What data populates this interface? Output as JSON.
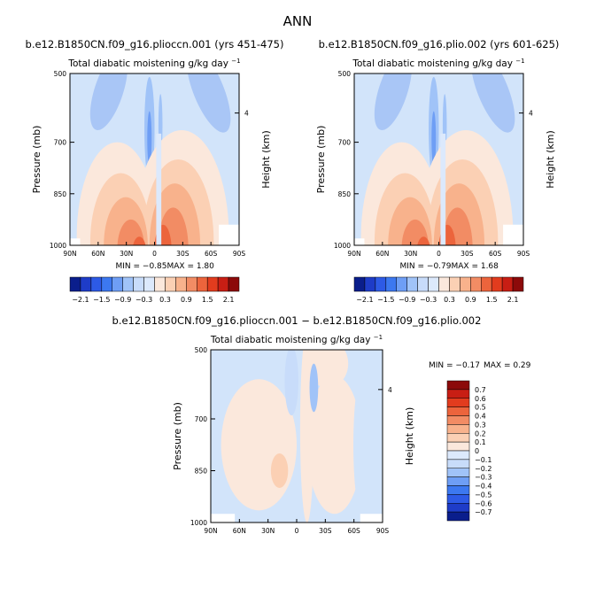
{
  "title": "ANN",
  "chart_data": [
    {
      "type": "heatmap",
      "title": "b.e12.B1850CN.f09_g16.plioccn.001 (yrs 451-475)",
      "subtitle": "Total diabatic moistening",
      "units": "g/kg day",
      "units_exponent": "−1",
      "ylabel": "Pressure (mb)",
      "right_ylabel": "Height (km)",
      "right_ticks": [
        "4"
      ],
      "x_ticks": [
        "90N",
        "60N",
        "30N",
        "0",
        "30S",
        "60S",
        "90S"
      ],
      "y_ticks": [
        "500",
        "700",
        "850",
        "1000"
      ],
      "min_label": "MIN =",
      "min_value": "−0.85",
      "max_label": "MAX =",
      "max_value": "1.80",
      "colorbar_labels": [
        "−2.1",
        "−1.5",
        "−0.9",
        "−0.3",
        "0.3",
        "0.9",
        "1.5",
        "2.1"
      ]
    },
    {
      "type": "heatmap",
      "title": "b.e12.B1850CN.f09_g16.plio.002 (yrs 601-625)",
      "subtitle": "Total diabatic moistening",
      "units": "g/kg day",
      "units_exponent": "−1",
      "ylabel": "Pressure (mb)",
      "right_ylabel": "Height (km)",
      "right_ticks": [
        "4"
      ],
      "x_ticks": [
        "90N",
        "60N",
        "30N",
        "0",
        "30S",
        "60S",
        "90S"
      ],
      "y_ticks": [
        "500",
        "700",
        "850",
        "1000"
      ],
      "min_label": "MIN =",
      "min_value": "−0.79",
      "max_label": "MAX =",
      "max_value": "1.68",
      "colorbar_labels": [
        "−2.1",
        "−1.5",
        "−0.9",
        "−0.3",
        "0.3",
        "0.9",
        "1.5",
        "2.1"
      ]
    },
    {
      "type": "heatmap",
      "title": "b.e12.B1850CN.f09_g16.plioccn.001 − b.e12.B1850CN.f09_g16.plio.002",
      "subtitle": "Total diabatic moistening",
      "units": "g/kg day",
      "units_exponent": "−1",
      "ylabel": "Pressure (mb)",
      "right_ylabel": "Height (km)",
      "right_ticks": [
        "4"
      ],
      "x_ticks": [
        "90N",
        "60N",
        "30N",
        "0",
        "30S",
        "60S",
        "90S"
      ],
      "y_ticks": [
        "500",
        "700",
        "850",
        "1000"
      ],
      "min_label": "MIN =",
      "min_value": "−0.17",
      "max_label": "MAX =",
      "max_value": "0.29",
      "colorbar_labels": [
        "0.7",
        "0.6",
        "0.5",
        "0.4",
        "0.3",
        "0.2",
        "0.1",
        "0",
        "−0.1",
        "−0.2",
        "−0.3",
        "−0.4",
        "−0.5",
        "−0.6",
        "−0.7"
      ]
    }
  ],
  "colors": {
    "scale": [
      "#0a1e8c",
      "#1e3cc8",
      "#2d5ae6",
      "#3c78f0",
      "#6e9ef5",
      "#a0c3f8",
      "#c8dcfa",
      "#dce9fc",
      "#fbe8dc",
      "#fbd0b4",
      "#f8b28c",
      "#f28c64",
      "#ec643c",
      "#e23c1e",
      "#c81e14",
      "#8c0a0a"
    ],
    "background": "#d2e4fa"
  }
}
